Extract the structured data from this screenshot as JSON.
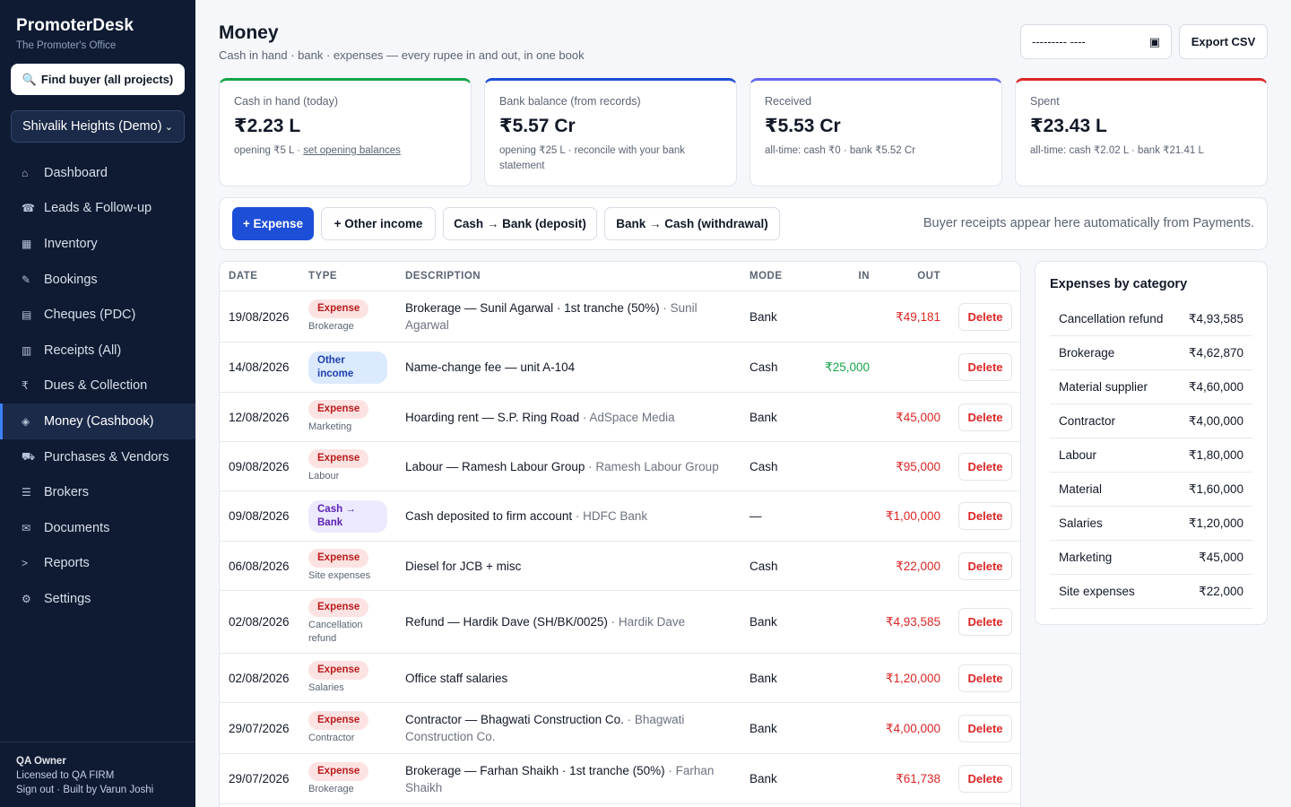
{
  "sidebar": {
    "brand": "PromoterDesk",
    "tagline": "The Promoter's Office",
    "find_buyer": "Find buyer (all projects)",
    "project": "Shivalik Heights (Demo)",
    "items": [
      {
        "label": "Dashboard",
        "icon": "⌂",
        "icon_name": "home-icon"
      },
      {
        "label": "Leads & Follow-up",
        "icon": "☎",
        "icon_name": "phone-icon"
      },
      {
        "label": "Inventory",
        "icon": "▦",
        "icon_name": "grid-icon"
      },
      {
        "label": "Bookings",
        "icon": "✎",
        "icon_name": "pencil-icon"
      },
      {
        "label": "Cheques (PDC)",
        "icon": "▤",
        "icon_name": "cheque-icon"
      },
      {
        "label": "Receipts (All)",
        "icon": "▥",
        "icon_name": "receipt-icon"
      },
      {
        "label": "Dues & Collection",
        "icon": "₹",
        "icon_name": "rupee-icon"
      },
      {
        "label": "Money (Cashbook)",
        "icon": "◈",
        "icon_name": "money-icon"
      },
      {
        "label": "Purchases & Vendors",
        "icon": "⛟",
        "icon_name": "truck-icon"
      },
      {
        "label": "Brokers",
        "icon": "☰",
        "icon_name": "list-icon"
      },
      {
        "label": "Documents",
        "icon": "✉",
        "icon_name": "envelope-icon"
      },
      {
        "label": "Reports",
        "icon": "˃",
        "icon_name": "chart-icon"
      },
      {
        "label": "Settings",
        "icon": "⚙",
        "icon_name": "gear-icon"
      }
    ],
    "active_index": 7,
    "footer": {
      "owner": "QA Owner",
      "license": "Licensed to QA FIRM",
      "signout": "Sign out · Built by Varun Joshi"
    }
  },
  "header": {
    "title": "Money",
    "subtitle": "Cash in hand · bank · expenses — every rupee in and out, in one book",
    "date_placeholder": "--------- ----",
    "export": "Export CSV"
  },
  "cards": [
    {
      "label": "Cash in hand (today)",
      "value": "₹2.23 L",
      "note": "opening ₹5 L · ",
      "note_link": "set opening balances",
      "accent": "#16a34a"
    },
    {
      "label": "Bank balance (from records)",
      "value": "₹5.57 Cr",
      "note": "opening ₹25 L · reconcile with your bank statement",
      "note_link": "",
      "accent": "#1d4ed8"
    },
    {
      "label": "Received",
      "value": "₹5.53 Cr",
      "note": "all-time: cash ₹0 · bank ₹5.52 Cr",
      "note_link": "",
      "accent": "#6366f1"
    },
    {
      "label": "Spent",
      "value": "₹23.43 L",
      "note": "all-time: cash ₹2.02 L · bank ₹21.41 L",
      "note_link": "",
      "accent": "#dc2626"
    }
  ],
  "actions": {
    "expense": "+ Expense",
    "other_income": "+ Other income",
    "deposit": "Cash → Bank (deposit)",
    "withdrawal": "Bank → Cash (withdrawal)",
    "hint": "Buyer receipts appear here automatically from Payments."
  },
  "ledger": {
    "headers": {
      "date": "DATE",
      "type": "TYPE",
      "description": "DESCRIPTION",
      "mode": "MODE",
      "in": "IN",
      "out": "OUT"
    },
    "delete_label": "Delete",
    "rows": [
      {
        "date": "19/08/2026",
        "type": "Expense",
        "kind": "expense",
        "subcat": "Brokerage",
        "desc": "Brokerage — Sunil Agarwal · 1st tranche (50%)",
        "party": "Sunil Agarwal",
        "mode": "Bank",
        "in": "",
        "out": "₹49,181"
      },
      {
        "date": "14/08/2026",
        "type": "Other income",
        "kind": "income",
        "subcat": "",
        "desc": "Name-change fee — unit A-104",
        "party": "",
        "mode": "Cash",
        "in": "₹25,000",
        "out": ""
      },
      {
        "date": "12/08/2026",
        "type": "Expense",
        "kind": "expense",
        "subcat": "Marketing",
        "desc": "Hoarding rent — S.P. Ring Road",
        "party": "AdSpace Media",
        "mode": "Bank",
        "in": "",
        "out": "₹45,000"
      },
      {
        "date": "09/08/2026",
        "type": "Expense",
        "kind": "expense",
        "subcat": "Labour",
        "desc": "Labour — Ramesh Labour Group",
        "party": "Ramesh Labour Group",
        "mode": "Cash",
        "in": "",
        "out": "₹95,000"
      },
      {
        "date": "09/08/2026",
        "type": "Cash → Bank",
        "kind": "transfer",
        "subcat": "",
        "desc": "Cash deposited to firm account",
        "party": "HDFC Bank",
        "mode": "—",
        "in": "",
        "out": "₹1,00,000"
      },
      {
        "date": "06/08/2026",
        "type": "Expense",
        "kind": "expense",
        "subcat": "Site expenses",
        "desc": "Diesel for JCB + misc",
        "party": "",
        "mode": "Cash",
        "in": "",
        "out": "₹22,000"
      },
      {
        "date": "02/08/2026",
        "type": "Expense",
        "kind": "expense",
        "subcat": "Cancellation refund",
        "desc": "Refund — Hardik Dave (SH/BK/0025)",
        "party": "Hardik Dave",
        "mode": "Bank",
        "in": "",
        "out": "₹4,93,585"
      },
      {
        "date": "02/08/2026",
        "type": "Expense",
        "kind": "expense",
        "subcat": "Salaries",
        "desc": "Office staff salaries",
        "party": "",
        "mode": "Bank",
        "in": "",
        "out": "₹1,20,000"
      },
      {
        "date": "29/07/2026",
        "type": "Expense",
        "kind": "expense",
        "subcat": "Contractor",
        "desc": "Contractor — Bhagwati Construction Co.",
        "party": "Bhagwati Construction Co.",
        "mode": "Bank",
        "in": "",
        "out": "₹4,00,000"
      },
      {
        "date": "29/07/2026",
        "type": "Expense",
        "kind": "expense",
        "subcat": "Brokerage",
        "desc": "Brokerage — Farhan Shaikh · 1st tranche (50%)",
        "party": "Farhan Shaikh",
        "mode": "Bank",
        "in": "",
        "out": "₹61,738"
      }
    ]
  },
  "categories": {
    "title": "Expenses by category",
    "rows": [
      {
        "name": "Cancellation refund",
        "amount": "₹4,93,585"
      },
      {
        "name": "Brokerage",
        "amount": "₹4,62,870"
      },
      {
        "name": "Material supplier",
        "amount": "₹4,60,000"
      },
      {
        "name": "Contractor",
        "amount": "₹4,00,000"
      },
      {
        "name": "Labour",
        "amount": "₹1,80,000"
      },
      {
        "name": "Material",
        "amount": "₹1,60,000"
      },
      {
        "name": "Salaries",
        "amount": "₹1,20,000"
      },
      {
        "name": "Marketing",
        "amount": "₹45,000"
      },
      {
        "name": "Site expenses",
        "amount": "₹22,000"
      }
    ]
  }
}
